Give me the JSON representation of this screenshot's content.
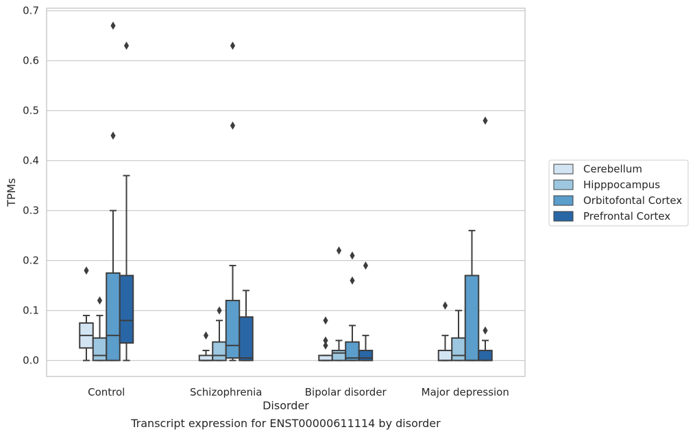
{
  "caption": "Transcript expression for ENST00000611114 by disorder",
  "chart_data": {
    "type": "box",
    "xlabel": "Disorder",
    "ylabel": "TPMs",
    "ylim": [
      -0.032,
      0.705
    ],
    "yticks": [
      0.0,
      0.1,
      0.2,
      0.3,
      0.4,
      0.5,
      0.6,
      0.7
    ],
    "ytick_labels": [
      "0.0",
      "0.1",
      "0.2",
      "0.3",
      "0.4",
      "0.5",
      "0.6",
      "0.7"
    ],
    "grid": "horizontal",
    "legend_position": "right",
    "categories": [
      "Control",
      "Schizophrenia",
      "Bipolar disorder",
      "Major depression"
    ],
    "series": [
      {
        "name": "Cerebellum",
        "color": "#d3e4f3",
        "boxes": [
          {
            "whislo": 0.0,
            "q1": 0.025,
            "median": 0.05,
            "q3": 0.075,
            "whishi": 0.09,
            "fliers": [
              0.18
            ]
          },
          {
            "whislo": 0.0,
            "q1": 0.0,
            "median": 0.0,
            "q3": 0.01,
            "whishi": 0.02,
            "fliers": [
              0.05
            ]
          },
          {
            "whislo": 0.0,
            "q1": 0.0,
            "median": 0.0,
            "q3": 0.01,
            "whishi": 0.01,
            "fliers": [
              0.03,
              0.04,
              0.08
            ]
          },
          {
            "whislo": 0.0,
            "q1": 0.0,
            "median": 0.0,
            "q3": 0.02,
            "whishi": 0.05,
            "fliers": [
              0.11
            ]
          }
        ]
      },
      {
        "name": "Hipppocampus",
        "color": "#9dc7e0",
        "boxes": [
          {
            "whislo": 0.0,
            "q1": 0.0,
            "median": 0.01,
            "q3": 0.045,
            "whishi": 0.09,
            "fliers": [
              0.12
            ]
          },
          {
            "whislo": 0.0,
            "q1": 0.0,
            "median": 0.01,
            "q3": 0.037,
            "whishi": 0.08,
            "fliers": [
              0.1
            ]
          },
          {
            "whislo": 0.0,
            "q1": 0.0,
            "median": 0.015,
            "q3": 0.02,
            "whishi": 0.04,
            "fliers": [
              0.22
            ]
          },
          {
            "whislo": 0.0,
            "q1": 0.0,
            "median": 0.01,
            "q3": 0.045,
            "whishi": 0.1,
            "fliers": []
          }
        ]
      },
      {
        "name": "Orbitofontal Cortex",
        "color": "#5b9dcb",
        "boxes": [
          {
            "whislo": 0.0,
            "q1": 0.0,
            "median": 0.05,
            "q3": 0.175,
            "whishi": 0.3,
            "fliers": [
              0.45,
              0.67
            ]
          },
          {
            "whislo": 0.0,
            "q1": 0.005,
            "median": 0.03,
            "q3": 0.12,
            "whishi": 0.19,
            "fliers": [
              0.47,
              0.63
            ]
          },
          {
            "whislo": 0.0,
            "q1": 0.0,
            "median": 0.005,
            "q3": 0.037,
            "whishi": 0.07,
            "fliers": [
              0.16,
              0.21
            ]
          },
          {
            "whislo": 0.0,
            "q1": 0.0,
            "median": 0.0,
            "q3": 0.17,
            "whishi": 0.26,
            "fliers": []
          }
        ]
      },
      {
        "name": "Prefrontal Cortex",
        "color": "#2966a6",
        "boxes": [
          {
            "whislo": 0.0,
            "q1": 0.035,
            "median": 0.08,
            "q3": 0.17,
            "whishi": 0.37,
            "fliers": [
              0.63
            ]
          },
          {
            "whislo": 0.0,
            "q1": 0.0,
            "median": 0.005,
            "q3": 0.087,
            "whishi": 0.14,
            "fliers": []
          },
          {
            "whislo": 0.0,
            "q1": 0.0,
            "median": 0.005,
            "q3": 0.02,
            "whishi": 0.05,
            "fliers": [
              0.19
            ]
          },
          {
            "whislo": 0.0,
            "q1": 0.0,
            "median": 0.0,
            "q3": 0.02,
            "whishi": 0.04,
            "fliers": [
              0.06,
              0.48
            ]
          }
        ]
      }
    ]
  }
}
